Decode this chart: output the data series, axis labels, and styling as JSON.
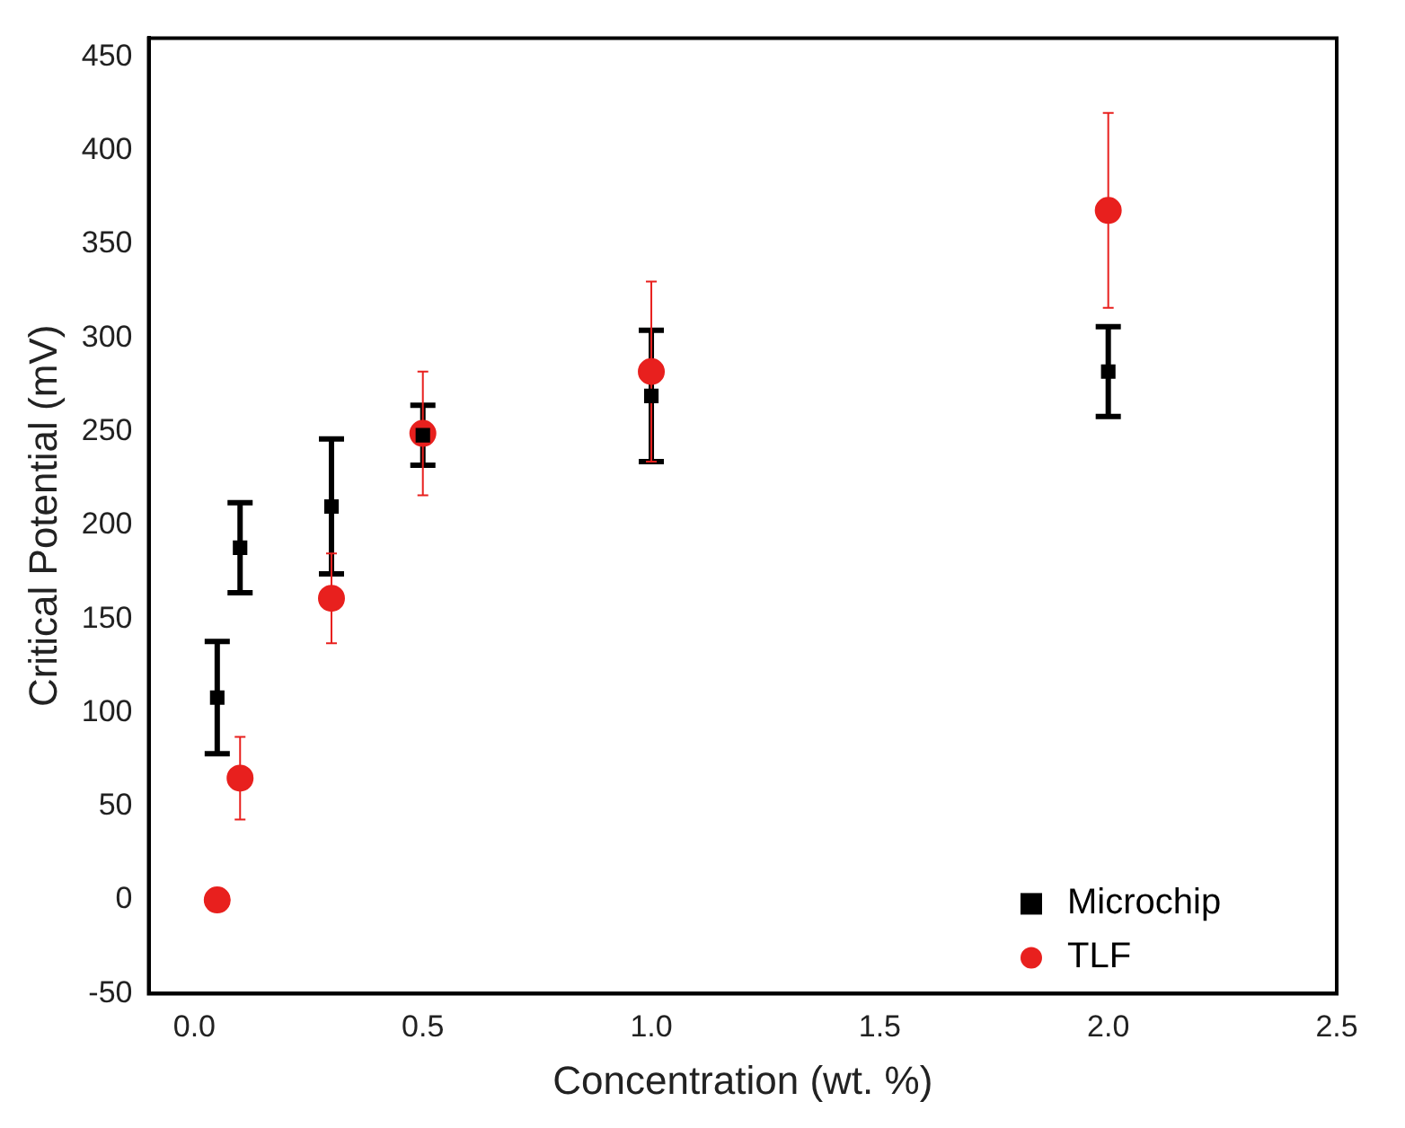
{
  "chart_data": {
    "type": "scatter",
    "xlabel": "Concentration (wt. %)",
    "ylabel": "Critical Potential (mV)",
    "xlim": [
      -0.1,
      2.5
    ],
    "ylim": [
      -50,
      460
    ],
    "xticks": [
      {
        "value": 0,
        "label": "0.0"
      },
      {
        "value": 0.5,
        "label": "0.5"
      },
      {
        "value": 1,
        "label": "1.0"
      },
      {
        "value": 1.5,
        "label": "1.5"
      },
      {
        "value": 2,
        "label": "2.0"
      },
      {
        "value": 2.5,
        "label": "2.5"
      }
    ],
    "yticks": [
      -50,
      0,
      50,
      100,
      150,
      200,
      250,
      300,
      350,
      400,
      450
    ],
    "grid": false,
    "legend": "bottom right",
    "series": [
      {
        "name": "Microchip",
        "color": "#000000",
        "marker": "square",
        "x": [
          0.05,
          0.1,
          0.3,
          0.5,
          1.0,
          2.0
        ],
        "values": [
          108,
          188,
          210,
          248,
          269,
          282
        ],
        "errors": [
          30,
          24,
          36,
          16,
          35,
          24
        ]
      },
      {
        "name": "TLF",
        "color": "#e8201e",
        "marker": "circle",
        "x": [
          0.05,
          0.1,
          0.3,
          0.5,
          1.0,
          2.0
        ],
        "values": [
          0,
          65,
          161,
          249,
          282,
          368
        ],
        "errors": [
          null,
          22,
          24,
          33,
          48,
          52
        ]
      }
    ]
  }
}
